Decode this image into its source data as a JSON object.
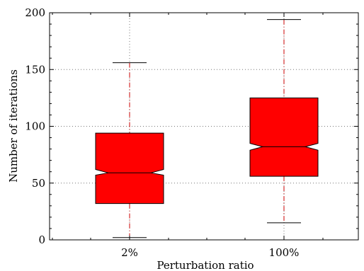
{
  "chart_data": {
    "type": "boxplot",
    "title": "",
    "xlabel": "Perturbation ratio",
    "ylabel": "Number of iterations",
    "categories": [
      "2%",
      "100%"
    ],
    "ylim": [
      0,
      200
    ],
    "yticks": [
      0,
      50,
      100,
      150,
      200
    ],
    "grid": true,
    "notched": true,
    "colors": {
      "box_fill": "#ff0000",
      "box_edge": "#000000",
      "median": "#000000",
      "whisker": "#cc0000",
      "cap": "#000000",
      "grid": "#777777",
      "axes": "#000000"
    },
    "boxes": [
      {
        "category": "2%",
        "whisker_low": 2,
        "q1": 32,
        "median": 59,
        "q3": 94,
        "whisker_high": 156,
        "notch_low": 57,
        "notch_high": 62
      },
      {
        "category": "100%",
        "whisker_low": 15,
        "q1": 56,
        "median": 82,
        "q3": 125,
        "whisker_high": 194,
        "notch_low": 79,
        "notch_high": 85
      }
    ]
  }
}
